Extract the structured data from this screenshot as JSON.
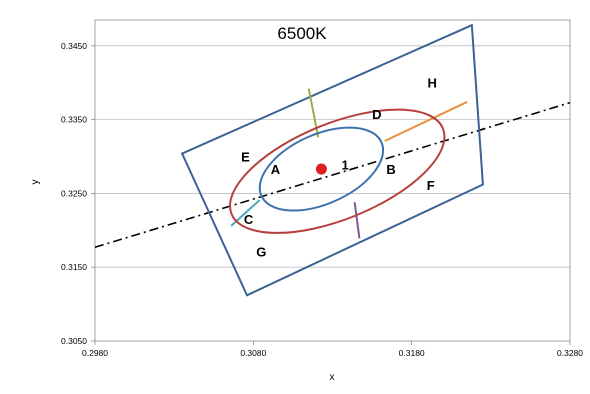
{
  "chart_data": {
    "type": "scatter",
    "title": "6500K",
    "xlabel": "x",
    "ylabel": "y",
    "xlim": [
      0.298,
      0.328
    ],
    "ylim": [
      0.3055,
      0.3485
    ],
    "x_ticks": [
      "0.2980",
      "0.3080",
      "0.3180",
      "0.3280"
    ],
    "y_ticks": [
      "0.3050",
      "0.3150",
      "0.3250",
      "0.3350",
      "0.3450"
    ],
    "x_tick_values": [
      0.298,
      0.308,
      0.318,
      0.328
    ],
    "y_tick_values": [
      0.305,
      0.315,
      0.325,
      0.335,
      0.345
    ],
    "grid": "horizontal",
    "legend": "none",
    "center_point": {
      "x": 0.3123,
      "y": 0.3283,
      "color": "#e02020"
    },
    "boundary_quadrilateral": {
      "color": "#3b6396",
      "points": [
        [
          0.3035,
          0.3304
        ],
        [
          0.3218,
          0.3478
        ],
        [
          0.3225,
          0.3262
        ],
        [
          0.3076,
          0.3112
        ]
      ]
    },
    "ellipses": [
      {
        "name": "1",
        "cx": 0.3123,
        "cy": 0.3283,
        "rx": 0.00415,
        "ry": 0.0047,
        "rotation_deg": -24,
        "color": "#3c72b0"
      },
      {
        "name": "2",
        "cx": 0.3133,
        "cy": 0.328,
        "rx": 0.0072,
        "ry": 0.0065,
        "rotation_deg": -22,
        "color": "#b5413e"
      }
    ],
    "dash_dot_line": {
      "color": "#000000",
      "points": [
        [
          0.298,
          0.3177
        ],
        [
          0.328,
          0.3373
        ]
      ]
    },
    "segments": [
      {
        "color": "#9ab046",
        "points": [
          [
            0.3115,
            0.3392
          ],
          [
            0.3121,
            0.3326
          ]
        ]
      },
      {
        "color": "#e8913e",
        "points": [
          [
            0.3163,
            0.3321
          ],
          [
            0.3215,
            0.3374
          ]
        ]
      },
      {
        "color": "#7d5a94",
        "points": [
          [
            0.3144,
            0.3238
          ],
          [
            0.3147,
            0.3189
          ]
        ]
      },
      {
        "color": "#4aa7c0",
        "points": [
          [
            0.3066,
            0.3206
          ],
          [
            0.3084,
            0.3241
          ]
        ]
      }
    ],
    "region_labels": [
      {
        "text": "1",
        "x": 0.3138,
        "y": 0.3288
      },
      {
        "text": "A",
        "x": 0.3094,
        "y": 0.3282
      },
      {
        "text": "B",
        "x": 0.3167,
        "y": 0.3282
      },
      {
        "text": "C",
        "x": 0.3077,
        "y": 0.3214
      },
      {
        "text": "D",
        "x": 0.3158,
        "y": 0.3356
      },
      {
        "text": "E",
        "x": 0.3075,
        "y": 0.3299
      },
      {
        "text": "F",
        "x": 0.3192,
        "y": 0.326
      },
      {
        "text": "G",
        "x": 0.3085,
        "y": 0.317
      },
      {
        "text": "H",
        "x": 0.3193,
        "y": 0.3399
      }
    ]
  }
}
